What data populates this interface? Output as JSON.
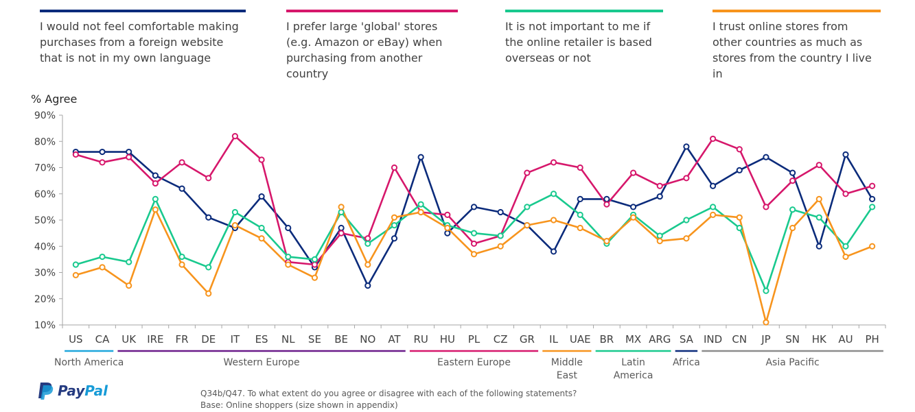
{
  "chart_data": {
    "type": "line",
    "ylabel": "% Agree",
    "ylim": [
      10,
      90
    ],
    "yticks": [
      "10%",
      "20%",
      "30%",
      "40%",
      "50%",
      "60%",
      "70%",
      "80%",
      "90%"
    ],
    "categories": [
      "US",
      "CA",
      "UK",
      "IRE",
      "FR",
      "DE",
      "IT",
      "ES",
      "NL",
      "SE",
      "BE",
      "NO",
      "AT",
      "RU",
      "HU",
      "PL",
      "CZ",
      "GR",
      "IL",
      "UAE",
      "BR",
      "MX",
      "ARG",
      "SA",
      "IND",
      "CN",
      "JP",
      "SN",
      "HK",
      "AU",
      "PH"
    ],
    "series": [
      {
        "name": "I would not feel comfortable making purchases from a foreign website that is not in my own language",
        "color": "#0b2b7b",
        "values": [
          76,
          76,
          76,
          67,
          62,
          51,
          47,
          59,
          47,
          32,
          47,
          25,
          43,
          74,
          45,
          55,
          53,
          48,
          38,
          58,
          58,
          55,
          59,
          78,
          63,
          69,
          74,
          68,
          40,
          75,
          58
        ]
      },
      {
        "name": "I prefer large 'global' stores (e.g. Amazon or eBay) when purchasing from another country",
        "color": "#d6176b",
        "values": [
          75,
          72,
          74,
          64,
          72,
          66,
          82,
          73,
          34,
          33,
          45,
          43,
          70,
          53,
          52,
          41,
          44,
          68,
          72,
          70,
          56,
          68,
          63,
          66,
          81,
          77,
          55,
          65,
          71,
          60,
          63
        ]
      },
      {
        "name": "It is not important to me if the online retailer is based overseas or not",
        "color": "#19c98e",
        "values": [
          33,
          36,
          34,
          58,
          36,
          32,
          53,
          47,
          36,
          35,
          53,
          41,
          48,
          56,
          48,
          45,
          44,
          55,
          60,
          52,
          41,
          52,
          44,
          50,
          55,
          47,
          23,
          54,
          51,
          40,
          55
        ]
      },
      {
        "name": "I trust online stores from other countries as much as stores from the country I live in",
        "color": "#f7941d",
        "values": [
          29,
          32,
          25,
          54,
          33,
          22,
          48,
          43,
          33,
          28,
          55,
          33,
          51,
          53,
          47,
          37,
          40,
          48,
          50,
          47,
          42,
          51,
          42,
          43,
          52,
          51,
          11,
          47,
          58,
          36,
          40
        ]
      }
    ],
    "regions": [
      {
        "name": "North America",
        "lines": [
          "North America"
        ],
        "start": 0,
        "end": 1,
        "color": "#1fa6dc"
      },
      {
        "name": "Western Europe",
        "lines": [
          "Western Europe"
        ],
        "start": 2,
        "end": 12,
        "color": "#6a1b8a"
      },
      {
        "name": "Eastern Europe",
        "lines": [
          "Eastern Europe"
        ],
        "start": 13,
        "end": 17,
        "color": "#d6176b"
      },
      {
        "name": "Middle East",
        "lines": [
          "Middle",
          "East"
        ],
        "start": 18,
        "end": 19,
        "color": "#f7941d"
      },
      {
        "name": "Latin America",
        "lines": [
          "Latin",
          "America"
        ],
        "start": 20,
        "end": 22,
        "color": "#19c98e"
      },
      {
        "name": "Africa",
        "lines": [
          "Africa"
        ],
        "start": 23,
        "end": 23,
        "color": "#0b2b7b"
      },
      {
        "name": "Asia Pacific",
        "lines": [
          "Asia Pacific"
        ],
        "start": 24,
        "end": 30,
        "color": "#8c8c8c"
      }
    ]
  },
  "legend": [
    {
      "text": "I would not feel comfortable making purchases from a foreign website that is not in my own language",
      "color": "#0b2b7b"
    },
    {
      "text": "I prefer large 'global' stores (e.g. Amazon or eBay) when purchasing from another country",
      "color": "#d6176b"
    },
    {
      "text": "It is not important to me if the online retailer is based overseas or not",
      "color": "#19c98e"
    },
    {
      "text": "I trust online stores from other countries as much as stores from the country I live in",
      "color": "#f7941d"
    }
  ],
  "footer": {
    "question": "Q34b/Q47. To what extent do you agree or disagree with each of the following statements?",
    "base": "Base: Online shoppers (size shown in appendix)"
  },
  "brand": {
    "pay": "Pay",
    "pal": "Pal",
    "logo_icon": "paypal-p-icon"
  }
}
